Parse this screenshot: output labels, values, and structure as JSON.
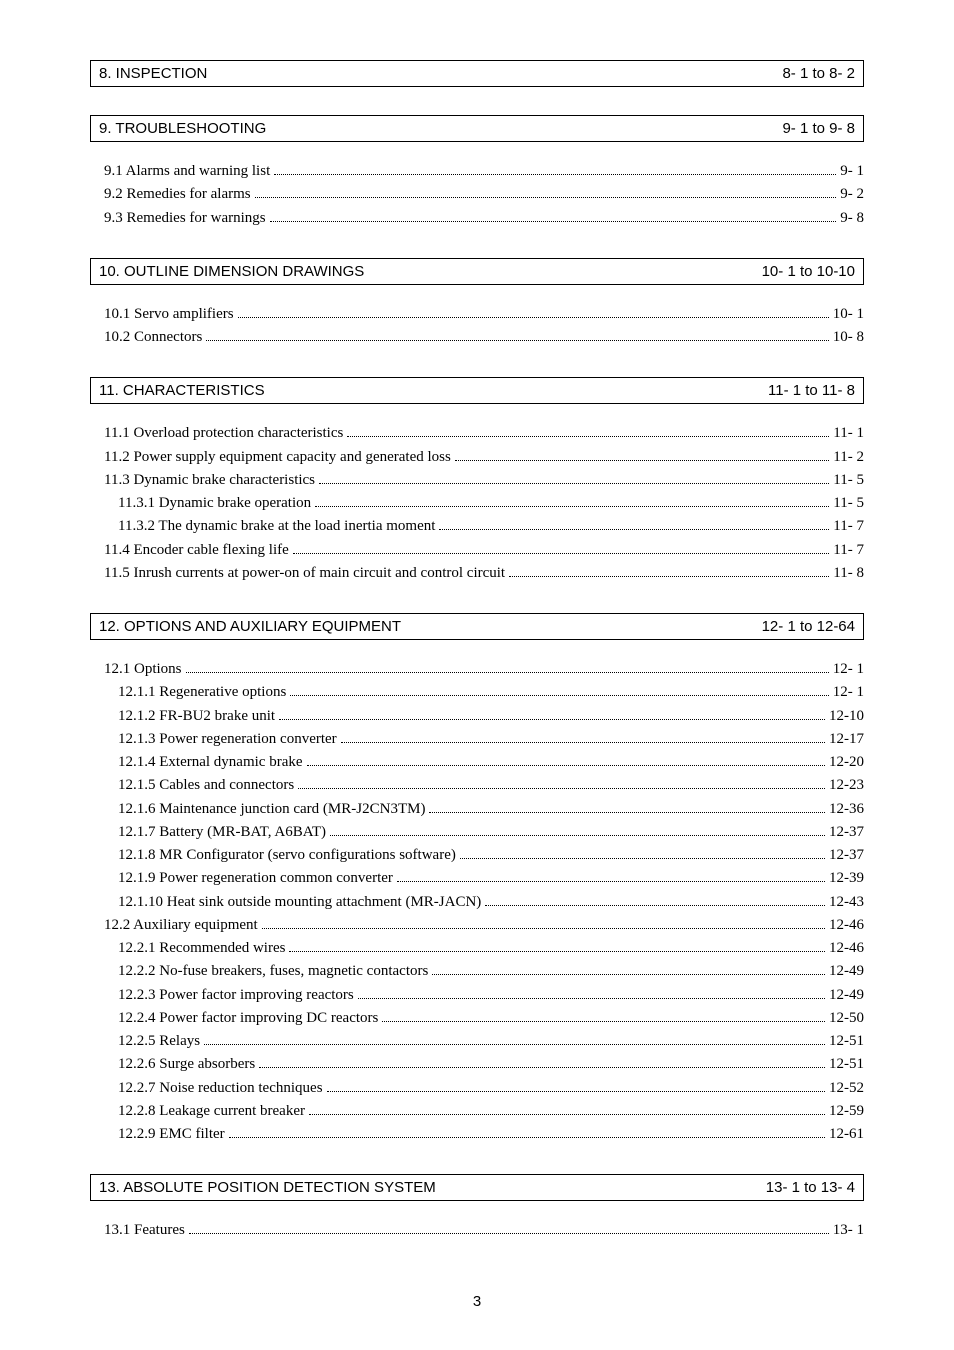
{
  "page_number": "3",
  "sections": [
    {
      "title": "8. INSPECTION",
      "range": "8- 1 to 8- 2",
      "entries": []
    },
    {
      "title": "9. TROUBLESHOOTING",
      "range": "9- 1 to 9- 8",
      "entries": [
        {
          "indent": 1,
          "title": "9.1 Alarms and warning list",
          "page": "9- 1"
        },
        {
          "indent": 1,
          "title": "9.2 Remedies for alarms",
          "page": "9- 2"
        },
        {
          "indent": 1,
          "title": "9.3 Remedies for warnings",
          "page": "9- 8"
        }
      ]
    },
    {
      "title": "10. OUTLINE DIMENSION DRAWINGS",
      "range": "10- 1 to 10-10",
      "entries": [
        {
          "indent": 1,
          "title": "10.1 Servo amplifiers",
          "page": "10- 1"
        },
        {
          "indent": 1,
          "title": "10.2 Connectors",
          "page": "10- 8"
        }
      ]
    },
    {
      "title": "11. CHARACTERISTICS",
      "range": "11- 1 to 11- 8",
      "entries": [
        {
          "indent": 1,
          "title": "11.1 Overload protection characteristics",
          "page": "11- 1"
        },
        {
          "indent": 1,
          "title": "11.2 Power supply equipment capacity and generated loss",
          "page": "11- 2"
        },
        {
          "indent": 1,
          "title": "11.3 Dynamic brake characteristics",
          "page": "11- 5"
        },
        {
          "indent": 2,
          "title": "11.3.1 Dynamic brake operation",
          "page": "11- 5"
        },
        {
          "indent": 2,
          "title": "11.3.2 The dynamic brake at the load inertia moment",
          "page": "11- 7"
        },
        {
          "indent": 1,
          "title": "11.4 Encoder cable flexing life",
          "page": "11- 7"
        },
        {
          "indent": 1,
          "title": "11.5 Inrush currents at power-on of main circuit and control circuit",
          "page": "11- 8"
        }
      ]
    },
    {
      "title": "12. OPTIONS AND AUXILIARY EQUIPMENT",
      "range": "12- 1 to 12-64",
      "entries": [
        {
          "indent": 1,
          "title": "12.1 Options",
          "page": "12- 1"
        },
        {
          "indent": 2,
          "title": "12.1.1 Regenerative options",
          "page": "12- 1"
        },
        {
          "indent": 2,
          "title": "12.1.2 FR-BU2 brake unit",
          "page": "12-10"
        },
        {
          "indent": 2,
          "title": "12.1.3 Power regeneration converter",
          "page": "12-17"
        },
        {
          "indent": 2,
          "title": "12.1.4 External dynamic brake",
          "page": "12-20"
        },
        {
          "indent": 2,
          "title": "12.1.5 Cables and connectors",
          "page": "12-23"
        },
        {
          "indent": 2,
          "title": "12.1.6 Maintenance junction card (MR-J2CN3TM)",
          "page": "12-36"
        },
        {
          "indent": 2,
          "title": "12.1.7 Battery (MR-BAT, A6BAT)",
          "page": "12-37"
        },
        {
          "indent": 2,
          "title": "12.1.8 MR Configurator (servo configurations software)",
          "page": "12-37"
        },
        {
          "indent": 2,
          "title": "12.1.9 Power regeneration common converter",
          "page": "12-39"
        },
        {
          "indent": 2,
          "title": "12.1.10 Heat sink outside mounting attachment (MR-JACN)",
          "page": "12-43"
        },
        {
          "indent": 1,
          "title": "12.2 Auxiliary equipment",
          "page": "12-46"
        },
        {
          "indent": 2,
          "title": "12.2.1 Recommended wires",
          "page": "12-46"
        },
        {
          "indent": 2,
          "title": "12.2.2 No-fuse breakers, fuses, magnetic contactors",
          "page": "12-49"
        },
        {
          "indent": 2,
          "title": "12.2.3 Power factor improving reactors",
          "page": "12-49"
        },
        {
          "indent": 2,
          "title": "12.2.4 Power factor improving DC reactors",
          "page": "12-50"
        },
        {
          "indent": 2,
          "title": "12.2.5 Relays",
          "page": "12-51"
        },
        {
          "indent": 2,
          "title": "12.2.6 Surge absorbers",
          "page": "12-51"
        },
        {
          "indent": 2,
          "title": "12.2.7 Noise reduction techniques",
          "page": "12-52"
        },
        {
          "indent": 2,
          "title": "12.2.8 Leakage current breaker",
          "page": "12-59"
        },
        {
          "indent": 2,
          "title": "12.2.9 EMC filter",
          "page": "12-61"
        }
      ]
    },
    {
      "title": "13. ABSOLUTE POSITION DETECTION SYSTEM",
      "range": "13- 1 to 13- 4",
      "entries": [
        {
          "indent": 1,
          "title": "13.1 Features",
          "page": "13- 1"
        }
      ]
    }
  ]
}
